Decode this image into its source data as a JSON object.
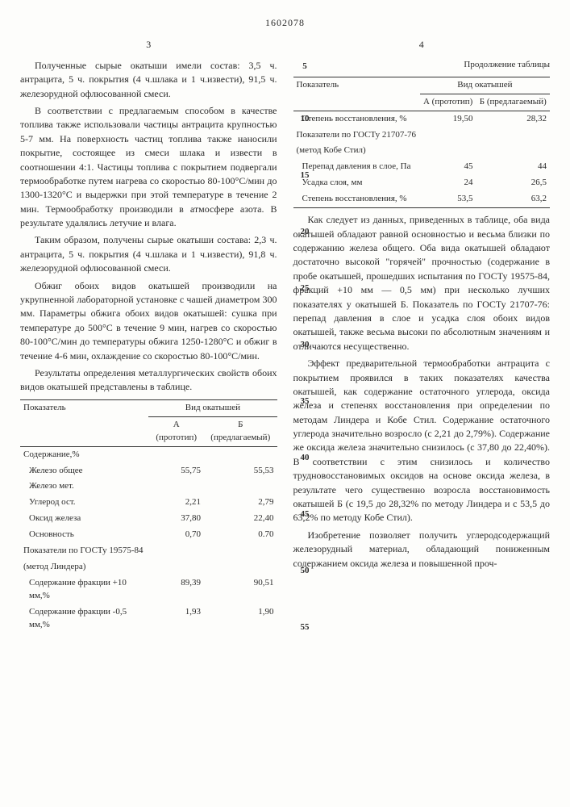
{
  "docNumber": "1602078",
  "leftColNum": "3",
  "rightColNum": "4",
  "lineMarkers": [
    "5",
    "10",
    "15",
    "20",
    "25",
    "30",
    "35",
    "40",
    "45",
    "50",
    "55"
  ],
  "left": {
    "p1": "Полученные сырые окатыши имели состав: 3,5 ч. антрацита, 5 ч. покрытия (4 ч.шлака и 1 ч.извести), 91,5 ч. железорудной офлюсованной смеси.",
    "p2": "В соответствии с предлагаемым способом в качестве топлива также использовали частицы антрацита крупностью 5-7 мм. На поверхность частиц топлива также наносили покрытие, состоящее из смеси шлака и извести в соотношении 4:1. Частицы топлива с покрытием подвергали термообработке путем нагрева со скоростью 80-100°С/мин до 1300-1320°С и выдержки при этой температуре в течение 2 мин. Термообработку производили в атмосфере азота. В результате удалялись летучие и влага.",
    "p3": "Таким образом, получены сырые окатыши состава: 2,3 ч. антрацита, 5 ч. покрытия (4 ч.шлака и 1 ч.извести), 91,8 ч. железорудной офлюсованной смеси.",
    "p4": "Обжиг обоих видов окатышей производили на укрупненной лабораторной установке с чашей диаметром 300 мм. Параметры обжига обоих видов окатышей: сушка при температуре до 500°С в течение 9 мин, нагрев со скоростью 80-100°С/мин до температуры обжига 1250-1280°С и обжиг в течение 4-6 мин, охлаждение со скоростью 80-100°С/мин.",
    "p5": "Результаты определения металлургических свойств обоих видов окатышей представлены в таблице."
  },
  "table1": {
    "head": {
      "c1": "Показатель",
      "c2": "Вид окатышей"
    },
    "sub": {
      "a": "А (прототип)",
      "b": "Б (предлагаемый)"
    },
    "rows": [
      {
        "label": "Содержание,%",
        "a": "",
        "b": ""
      },
      {
        "label": "Железо общее",
        "a": "55,75",
        "b": "55,53",
        "indent": true
      },
      {
        "label": "Железо мет.",
        "a": "",
        "b": "",
        "indent": true
      },
      {
        "label": "Углерод ост.",
        "a": "2,21",
        "b": "2,79",
        "indent": true
      },
      {
        "label": "Оксид железа",
        "a": "37,80",
        "b": "22,40",
        "indent": true
      },
      {
        "label": "Основность",
        "a": "0,70",
        "b": "0.70",
        "indent": true
      },
      {
        "label": "Показатели по ГОСТу 19575-84",
        "a": "",
        "b": ""
      },
      {
        "label": "(метод Линдера)",
        "a": "",
        "b": ""
      },
      {
        "label": "Содержание фракции +10 мм,%",
        "a": "89,39",
        "b": "90,51",
        "indent": true
      },
      {
        "label": "Содержание фракции -0,5 мм,%",
        "a": "1,93",
        "b": "1,90",
        "indent": true
      }
    ]
  },
  "right": {
    "tblCaption": "Продолжение таблицы"
  },
  "table2": {
    "head": {
      "c1": "Показатель",
      "c2": "Вид окатышей"
    },
    "sub": {
      "a": "А (прототип)",
      "b": "Б (предлагаемый)"
    },
    "rows": [
      {
        "label": "Степень восстановления, %",
        "a": "19,50",
        "b": "28,32",
        "indent": true
      },
      {
        "label": "Показатели по ГОСТу 21707-76",
        "a": "",
        "b": ""
      },
      {
        "label": "(метод Кобе Стил)",
        "a": "",
        "b": ""
      },
      {
        "label": "Перепад давления в слое, Па",
        "a": "45",
        "b": "44",
        "indent": true
      },
      {
        "label": "Усадка слоя, мм",
        "a": "24",
        "b": "26,5",
        "indent": true
      },
      {
        "label": "Степень восстановления, %",
        "a": "53,5",
        "b": "63,2",
        "indent": true
      }
    ]
  },
  "rightText": {
    "p1": "Как следует из данных, приведенных в таблице, оба вида окатышей обладают равной основностью и весьма близки по содержанию железа общего. Оба вида окатышей обладают достаточно высокой \"горячей\" прочностью (содержание в пробе окатышей, прошедших испытания по ГОСТу 19575-84, фракций +10 мм — 0,5 мм) при несколько лучших показателях у окатышей Б. Показатель по ГОСТу 21707-76: перепад давления в слое и усадка слоя обоих видов окатышей, также весьма высоки по абсолютным значениям и отличаются несущественно.",
    "p2": "Эффект предварительной термообработки антрацита с покрытием проявился в таких показателях качества окатышей, как содержание остаточного углерода, оксида железа и степенях восстановления при определении по методам Линдера и Кобе Стил. Содержание остаточного углерода значительно возросло (с 2,21 до 2,79%). Содержание же оксида железа значительно снизилось (с 37,80 до 22,40%). В соответствии с этим снизилось и количество трудновосстановимых оксидов на основе оксида железа, в результате чего существенно возросла восстановимость окатышей Б (с 19,5 до 28,32% по методу Линдера и с 53,5 до 63,2% по методу Кобе Стил).",
    "p3": "Изобретение позволяет получить углеродсодержащий железорудный материал, обладающий пониженным содержанием оксида железа и повышенной проч-"
  }
}
